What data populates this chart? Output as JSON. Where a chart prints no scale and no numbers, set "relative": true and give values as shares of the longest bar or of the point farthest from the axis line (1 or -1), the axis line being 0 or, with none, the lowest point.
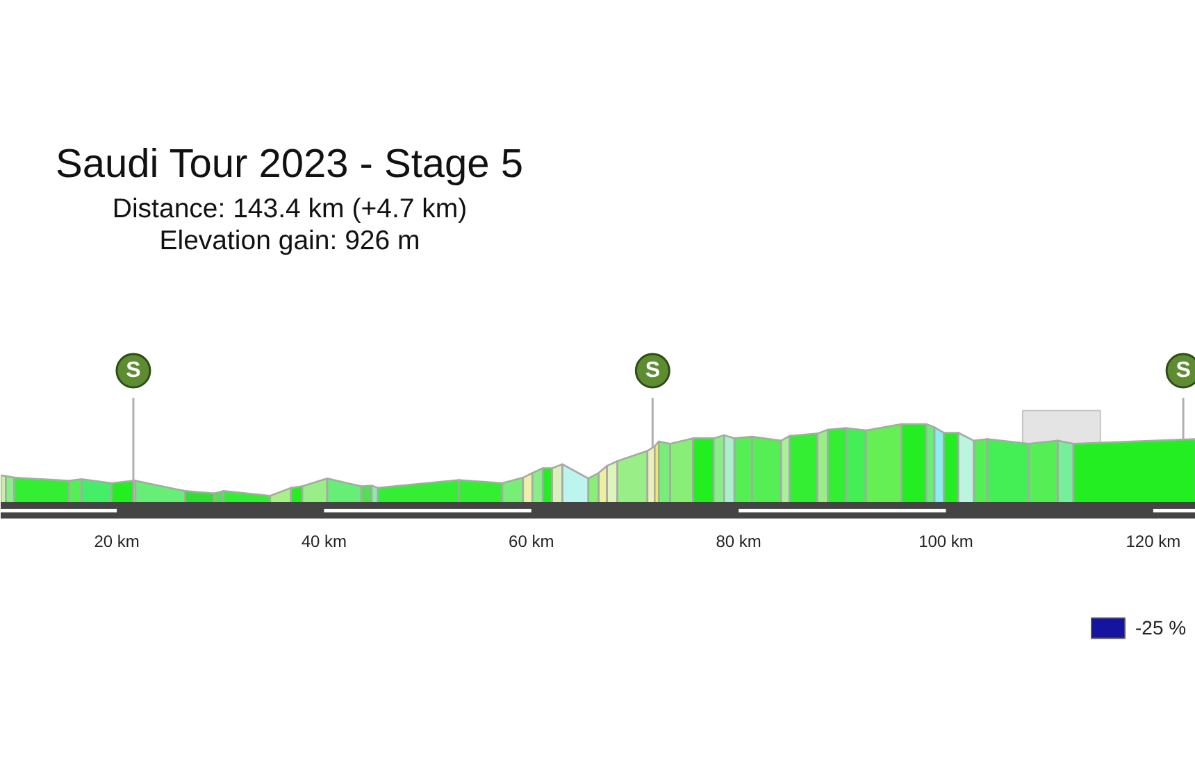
{
  "chart_data": {
    "type": "area",
    "title": "Saudi Tour 2023 - Stage 5",
    "subtitle": "Distance: 143.4 km (+4.7 km)",
    "annotations": [
      "Elevation gain: 926 m",
      {
        "text": "S",
        "x": 21.6,
        "y": 0.28
      },
      {
        "text": "S",
        "x": 71.7,
        "y": 0.71
      },
      {
        "text": "S",
        "x": 122.9,
        "y": 0.81
      }
    ],
    "relative": true,
    "xlim": [
      8.8,
      124.1
    ],
    "xticks": [
      {
        "value": 20,
        "label": "20 km"
      },
      {
        "value": 40,
        "label": "40 km"
      },
      {
        "value": 60,
        "label": "60 km"
      },
      {
        "value": 80,
        "label": "80 km"
      },
      {
        "value": 100,
        "label": "100 km"
      },
      {
        "value": 120,
        "label": "120 km"
      }
    ],
    "legend": "bottom right",
    "bands": [
      {
        "axis": "x",
        "from": 107.4,
        "to": 114.9,
        "color": "#e4e4e4"
      }
    ],
    "series": [
      {
        "x": [
          8.8,
          9.3
        ],
        "values": [
          0.35,
          0.34
        ],
        "color": "#c8f0a0"
      },
      {
        "x": [
          9.3,
          10.1
        ],
        "values": [
          0.34,
          0.32
        ],
        "color": "#88ee88"
      },
      {
        "x": [
          10.1,
          15.4
        ],
        "values": [
          0.32,
          0.28
        ],
        "color": "#33ee33"
      },
      {
        "x": [
          15.4,
          16.6
        ],
        "values": [
          0.28,
          0.3
        ],
        "color": "#55ee55"
      },
      {
        "x": [
          16.6,
          19.5
        ],
        "values": [
          0.3,
          0.25
        ],
        "color": "#44ee66"
      },
      {
        "x": [
          19.5,
          21.6
        ],
        "values": [
          0.25,
          0.28
        ],
        "color": "#22ee22"
      },
      {
        "x": [
          21.6,
          21.8
        ],
        "values": [
          0.28,
          0.28
        ],
        "color": "#eef0b0"
      },
      {
        "x": [
          21.8,
          26.6
        ],
        "values": [
          0.28,
          0.15
        ],
        "color": "#66ee77"
      },
      {
        "x": [
          26.6,
          29.4
        ],
        "values": [
          0.15,
          0.12
        ],
        "color": "#33dd33"
      },
      {
        "x": [
          29.4,
          30.3
        ],
        "values": [
          0.12,
          0.15
        ],
        "color": "#55dd55"
      },
      {
        "x": [
          30.3,
          34.8
        ],
        "values": [
          0.15,
          0.09
        ],
        "color": "#33ee33"
      },
      {
        "x": [
          34.8,
          36.8
        ],
        "values": [
          0.09,
          0.19
        ],
        "color": "#aaf08a"
      },
      {
        "x": [
          36.8,
          37.9
        ],
        "values": [
          0.19,
          0.21
        ],
        "color": "#22ee22"
      },
      {
        "x": [
          37.9,
          40.3
        ],
        "values": [
          0.21,
          0.31
        ],
        "color": "#99ee88"
      },
      {
        "x": [
          40.3,
          43.6
        ],
        "values": [
          0.31,
          0.21
        ],
        "color": "#66ee77"
      },
      {
        "x": [
          43.6,
          44.6
        ],
        "values": [
          0.21,
          0.22
        ],
        "color": "#55dd55"
      },
      {
        "x": [
          44.6,
          45.2
        ],
        "values": [
          0.22,
          0.19
        ],
        "color": "#88eeaa"
      },
      {
        "x": [
          45.2,
          53.0
        ],
        "values": [
          0.19,
          0.29
        ],
        "color": "#33ee33"
      },
      {
        "x": [
          53.0,
          57.2
        ],
        "values": [
          0.29,
          0.25
        ],
        "color": "#33ee33"
      },
      {
        "x": [
          57.2,
          59.2
        ],
        "values": [
          0.25,
          0.32
        ],
        "color": "#77ee77"
      },
      {
        "x": [
          59.2,
          60.1
        ],
        "values": [
          0.32,
          0.38
        ],
        "color": "#eef0aa"
      },
      {
        "x": [
          60.1,
          61.1
        ],
        "values": [
          0.38,
          0.44
        ],
        "color": "#88ee88"
      },
      {
        "x": [
          61.1,
          62.0
        ],
        "values": [
          0.44,
          0.44
        ],
        "color": "#22ee22"
      },
      {
        "x": [
          62.0,
          63.0
        ],
        "values": [
          0.44,
          0.49
        ],
        "color": "#ddf0bb"
      },
      {
        "x": [
          63.0,
          65.5
        ],
        "values": [
          0.49,
          0.31
        ],
        "color": "#bbf5ee"
      },
      {
        "x": [
          65.5,
          66.5
        ],
        "values": [
          0.31,
          0.38
        ],
        "color": "#88ee77"
      },
      {
        "x": [
          66.5,
          67.3
        ],
        "values": [
          0.38,
          0.47
        ],
        "color": "#eef0a0"
      },
      {
        "x": [
          67.3,
          68.3
        ],
        "values": [
          0.47,
          0.53
        ],
        "color": "#ddf5bb"
      },
      {
        "x": [
          68.3,
          71.2
        ],
        "values": [
          0.53,
          0.66
        ],
        "color": "#99ee88"
      },
      {
        "x": [
          71.2,
          71.9
        ],
        "values": [
          0.66,
          0.72
        ],
        "color": "#eef0bb"
      },
      {
        "x": [
          71.9,
          72.3
        ],
        "values": [
          0.72,
          0.78
        ],
        "color": "#eeee66"
      },
      {
        "x": [
          72.3,
          73.4
        ],
        "values": [
          0.78,
          0.75
        ],
        "color": "#77ee77"
      },
      {
        "x": [
          73.4,
          75.6
        ],
        "values": [
          0.75,
          0.82
        ],
        "color": "#88ee77"
      },
      {
        "x": [
          75.6,
          77.6
        ],
        "values": [
          0.82,
          0.82
        ],
        "color": "#22ee22"
      },
      {
        "x": [
          77.6,
          78.6
        ],
        "values": [
          0.82,
          0.86
        ],
        "color": "#88ee88"
      },
      {
        "x": [
          78.6,
          79.6
        ],
        "values": [
          0.86,
          0.82
        ],
        "color": "#aaf0cc"
      },
      {
        "x": [
          79.6,
          81.3
        ],
        "values": [
          0.82,
          0.84
        ],
        "color": "#55ee55"
      },
      {
        "x": [
          81.3,
          84.1
        ],
        "values": [
          0.84,
          0.79
        ],
        "color": "#55ee55"
      },
      {
        "x": [
          84.1,
          84.9
        ],
        "values": [
          0.79,
          0.85
        ],
        "color": "#aaf09a"
      },
      {
        "x": [
          84.9,
          87.6
        ],
        "values": [
          0.85,
          0.88
        ],
        "color": "#33ee33"
      },
      {
        "x": [
          87.6,
          88.6
        ],
        "values": [
          0.88,
          0.93
        ],
        "color": "#99ee88"
      },
      {
        "x": [
          88.6,
          90.4
        ],
        "values": [
          0.93,
          0.95
        ],
        "color": "#33ee33"
      },
      {
        "x": [
          90.4,
          92.3
        ],
        "values": [
          0.95,
          0.92
        ],
        "color": "#44ee55"
      },
      {
        "x": [
          92.3,
          95.7
        ],
        "values": [
          0.92,
          1
        ],
        "color": "#66ee55"
      },
      {
        "x": [
          95.7,
          98.1
        ],
        "values": [
          1,
          1
        ],
        "color": "#22ee22"
      },
      {
        "x": [
          98.1,
          98.9
        ],
        "values": [
          1,
          0.96
        ],
        "color": "#66ee77"
      },
      {
        "x": [
          98.9,
          99.8
        ],
        "values": [
          0.96,
          0.89
        ],
        "color": "#88eeee"
      },
      {
        "x": [
          99.8,
          101.2
        ],
        "values": [
          0.89,
          0.89
        ],
        "color": "#22ee22"
      },
      {
        "x": [
          101.2,
          102.7
        ],
        "values": [
          0.89,
          0.79
        ],
        "color": "#bbf5dd"
      },
      {
        "x": [
          102.7,
          104.0
        ],
        "values": [
          0.79,
          0.81
        ],
        "color": "#55ee55"
      },
      {
        "x": [
          104.0,
          108.0
        ],
        "values": [
          0.81,
          0.75
        ],
        "color": "#44ee55"
      },
      {
        "x": [
          108.0,
          110.8
        ],
        "values": [
          0.75,
          0.79
        ],
        "color": "#55ee55"
      },
      {
        "x": [
          110.8,
          112.3
        ],
        "values": [
          0.79,
          0.75
        ],
        "color": "#77ee99"
      },
      {
        "x": [
          112.3,
          124.1
        ],
        "values": [
          0.75,
          0.81
        ],
        "color": "#22ee22"
      },
      {
        "name": "-25 %",
        "color": "#1414a0"
      }
    ]
  }
}
